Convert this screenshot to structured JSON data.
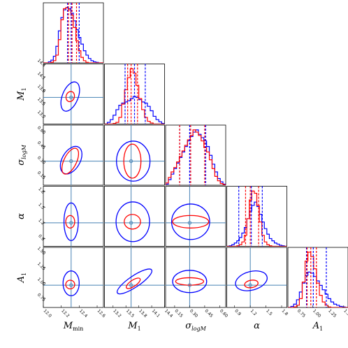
{
  "chart_data": {
    "type": "corner",
    "colors": {
      "series_a": "#0000ff",
      "series_b": "#ff0000",
      "truth": "#4682b4"
    },
    "parameters": [
      {
        "key": "Mmin",
        "label": "M",
        "sub": "min",
        "sub_italic": false,
        "range": [
          12.0,
          12.67
        ],
        "ticks": [
          "12.0",
          "12.2",
          "12.4",
          "12.6"
        ],
        "truth": 12.31
      },
      {
        "key": "M1",
        "label": "M",
        "sub": "1",
        "sub_italic": false,
        "range": [
          13.0,
          14.4
        ],
        "ticks": [
          "13.2",
          "13.5",
          "13.8",
          "14.1",
          "14.4"
        ],
        "truth": 13.62
      },
      {
        "key": "sigma",
        "label": "σ",
        "sub": "logM",
        "sub_italic": true,
        "range": [
          0.06,
          0.66
        ],
        "ticks": [
          "0.15",
          "0.30",
          "0.45",
          "0.60"
        ],
        "truth": 0.3
      },
      {
        "key": "alpha",
        "label": "α",
        "sub": "",
        "sub_italic": false,
        "range": [
          0.75,
          1.9
        ],
        "ticks": [
          "0.9",
          "1.2",
          "1.5",
          "1.8"
        ],
        "truth": 1.2
      },
      {
        "key": "A1",
        "label": "A",
        "sub": "1",
        "sub_italic": false,
        "range": [
          0.6,
          1.57
        ],
        "ticks": [
          "0.75",
          "1.00",
          "1.25",
          "1.50"
        ],
        "truth": 0.96
      }
    ],
    "diagonal": [
      {
        "hist_a": [
          0,
          0,
          0.02,
          0.05,
          0.12,
          0.3,
          0.58,
          0.82,
          0.96,
          1,
          0.98,
          0.9,
          0.76,
          0.6,
          0.46,
          0.34,
          0.22,
          0.14,
          0.08,
          0.04,
          0.02,
          0.01,
          0,
          0
        ],
        "hist_b": [
          0,
          0,
          0,
          0.01,
          0.04,
          0.14,
          0.42,
          0.78,
          0.98,
          1,
          0.96,
          0.86,
          0.64,
          0.4,
          0.22,
          0.1,
          0.04,
          0.01,
          0,
          0,
          0,
          0,
          0,
          0
        ],
        "vlines_a": [
          12.27,
          12.31,
          12.4
        ],
        "vlines_b": [
          12.28,
          12.32,
          12.37
        ]
      },
      {
        "hist_a": [
          0,
          0.03,
          0.08,
          0.16,
          0.26,
          0.34,
          0.38,
          0.4,
          0.42,
          0.46,
          0.5,
          0.48,
          0.44,
          0.4,
          0.38,
          0.32,
          0.24,
          0.14,
          0.08,
          0.04,
          0.01
        ],
        "hist_b": [
          0,
          0,
          0,
          0.01,
          0.03,
          0.12,
          0.36,
          0.62,
          0.84,
          1,
          0.92,
          0.7,
          0.46,
          0.26,
          0.12,
          0.05,
          0.02,
          0,
          0,
          0,
          0
        ],
        "vlines_a": [
          13.48,
          13.7,
          13.95
        ],
        "vlines_b": [
          13.54,
          13.62,
          13.77
        ]
      },
      {
        "hist_a": [
          0.02,
          0.1,
          0.2,
          0.3,
          0.4,
          0.5,
          0.6,
          0.7,
          0.8,
          0.88,
          0.96,
          1,
          0.92,
          0.86,
          0.8,
          0.7,
          0.54,
          0.38,
          0.24,
          0.12,
          0.06,
          0.02
        ],
        "hist_b": [
          0.04,
          0.14,
          0.24,
          0.32,
          0.42,
          0.52,
          0.62,
          0.72,
          0.82,
          0.9,
          1,
          0.96,
          0.9,
          0.8,
          0.68,
          0.6,
          0.46,
          0.3,
          0.16,
          0.08,
          0.03,
          0.01
        ],
        "vlines_a": [
          0.2,
          0.3,
          0.46
        ],
        "vlines_b": [
          0.2,
          0.31,
          0.45
        ]
      },
      {
        "hist_a": [
          0,
          0.01,
          0.03,
          0.06,
          0.1,
          0.16,
          0.24,
          0.34,
          0.5,
          0.64,
          0.74,
          0.8,
          0.72,
          0.58,
          0.44,
          0.32,
          0.22,
          0.14,
          0.1,
          0.06,
          0.04,
          0.02,
          0.01,
          0
        ],
        "hist_b": [
          0,
          0,
          0,
          0,
          0.01,
          0.03,
          0.08,
          0.2,
          0.5,
          0.84,
          1,
          0.96,
          0.74,
          0.44,
          0.2,
          0.08,
          0.03,
          0.01,
          0,
          0,
          0,
          0,
          0,
          0
        ],
        "vlines_a": [
          0.98,
          1.22,
          1.43
        ],
        "vlines_b": [
          1.11,
          1.2,
          1.36
        ]
      },
      {
        "hist_a": [
          0,
          0.02,
          0.06,
          0.14,
          0.28,
          0.44,
          0.58,
          0.64,
          0.62,
          0.56,
          0.48,
          0.4,
          0.32,
          0.24,
          0.16,
          0.1,
          0.06,
          0.04,
          0.02,
          0.01,
          0
        ],
        "hist_b": [
          0,
          0,
          0.01,
          0.04,
          0.16,
          0.46,
          0.84,
          1,
          0.92,
          0.7,
          0.44,
          0.22,
          0.1,
          0.04,
          0.01,
          0,
          0,
          0,
          0,
          0,
          0
        ],
        "vlines_a": [
          0.9,
          1.01,
          1.22
        ],
        "vlines_b": [
          0.91,
          0.97,
          1.06
        ]
      }
    ],
    "offdiagonal": [
      {
        "row": 1,
        "col": 0,
        "a": {
          "cx": 12.3,
          "cy": 13.64,
          "rx": 0.088,
          "ry": 0.36,
          "rot": 22
        },
        "b": {
          "cx": 12.3,
          "cy": 13.64,
          "rx": 0.046,
          "ry": 0.12,
          "rot": 18
        }
      },
      {
        "row": 2,
        "col": 0,
        "a": {
          "cx": 12.31,
          "cy": 0.31,
          "rx": 0.1,
          "ry": 0.15,
          "rot": 30
        },
        "b": {
          "cx": 12.3,
          "cy": 0.3,
          "rx": 0.07,
          "ry": 0.14,
          "rot": 26
        }
      },
      {
        "row": 2,
        "col": 1,
        "a": {
          "cx": 13.67,
          "cy": 0.3,
          "rx": 0.39,
          "ry": 0.2,
          "rot": 0
        },
        "b": {
          "cx": 13.65,
          "cy": 0.3,
          "rx": 0.2,
          "ry": 0.17,
          "rot": 0
        }
      },
      {
        "row": 3,
        "col": 0,
        "a": {
          "cx": 12.31,
          "cy": 1.22,
          "rx": 0.08,
          "ry": 0.36,
          "rot": 0
        },
        "b": {
          "cx": 12.3,
          "cy": 1.22,
          "rx": 0.05,
          "ry": 0.12,
          "rot": 0
        }
      },
      {
        "row": 3,
        "col": 1,
        "a": {
          "cx": 13.66,
          "cy": 1.22,
          "rx": 0.39,
          "ry": 0.38,
          "rot": 0
        },
        "b": {
          "cx": 13.65,
          "cy": 1.22,
          "rx": 0.19,
          "ry": 0.14,
          "rot": 0
        }
      },
      {
        "row": 3,
        "col": 2,
        "a": {
          "cx": 0.31,
          "cy": 1.22,
          "rx": 0.19,
          "ry": 0.34,
          "rot": 0
        },
        "b": {
          "cx": 0.31,
          "cy": 1.22,
          "rx": 0.18,
          "ry": 0.12,
          "rot": 0
        }
      },
      {
        "row": 4,
        "col": 0,
        "a": {
          "cx": 12.31,
          "cy": 0.99,
          "rx": 0.09,
          "ry": 0.2,
          "rot": 0
        },
        "b": {
          "cx": 12.3,
          "cy": 0.97,
          "rx": 0.05,
          "ry": 0.07,
          "rot": 0
        }
      },
      {
        "row": 4,
        "col": 1,
        "a": {
          "cx": 13.7,
          "cy": 1.02,
          "rx": 0.48,
          "ry": 0.09,
          "rot": -34
        },
        "b": {
          "cx": 13.67,
          "cy": 0.99,
          "rx": 0.19,
          "ry": 0.05,
          "rot": -34
        }
      },
      {
        "row": 4,
        "col": 2,
        "a": {
          "cx": 0.3,
          "cy": 1.02,
          "rx": 0.17,
          "ry": 0.18,
          "rot": 0
        },
        "b": {
          "cx": 0.3,
          "cy": 1.02,
          "rx": 0.14,
          "ry": 0.06,
          "rot": 0
        }
      },
      {
        "row": 4,
        "col": 3,
        "a": {
          "cx": 1.22,
          "cy": 1.03,
          "rx": 0.31,
          "ry": 0.15,
          "rot": -15
        },
        "b": {
          "cx": 1.22,
          "cy": 0.98,
          "rx": 0.13,
          "ry": 0.06,
          "rot": -10
        }
      }
    ]
  }
}
